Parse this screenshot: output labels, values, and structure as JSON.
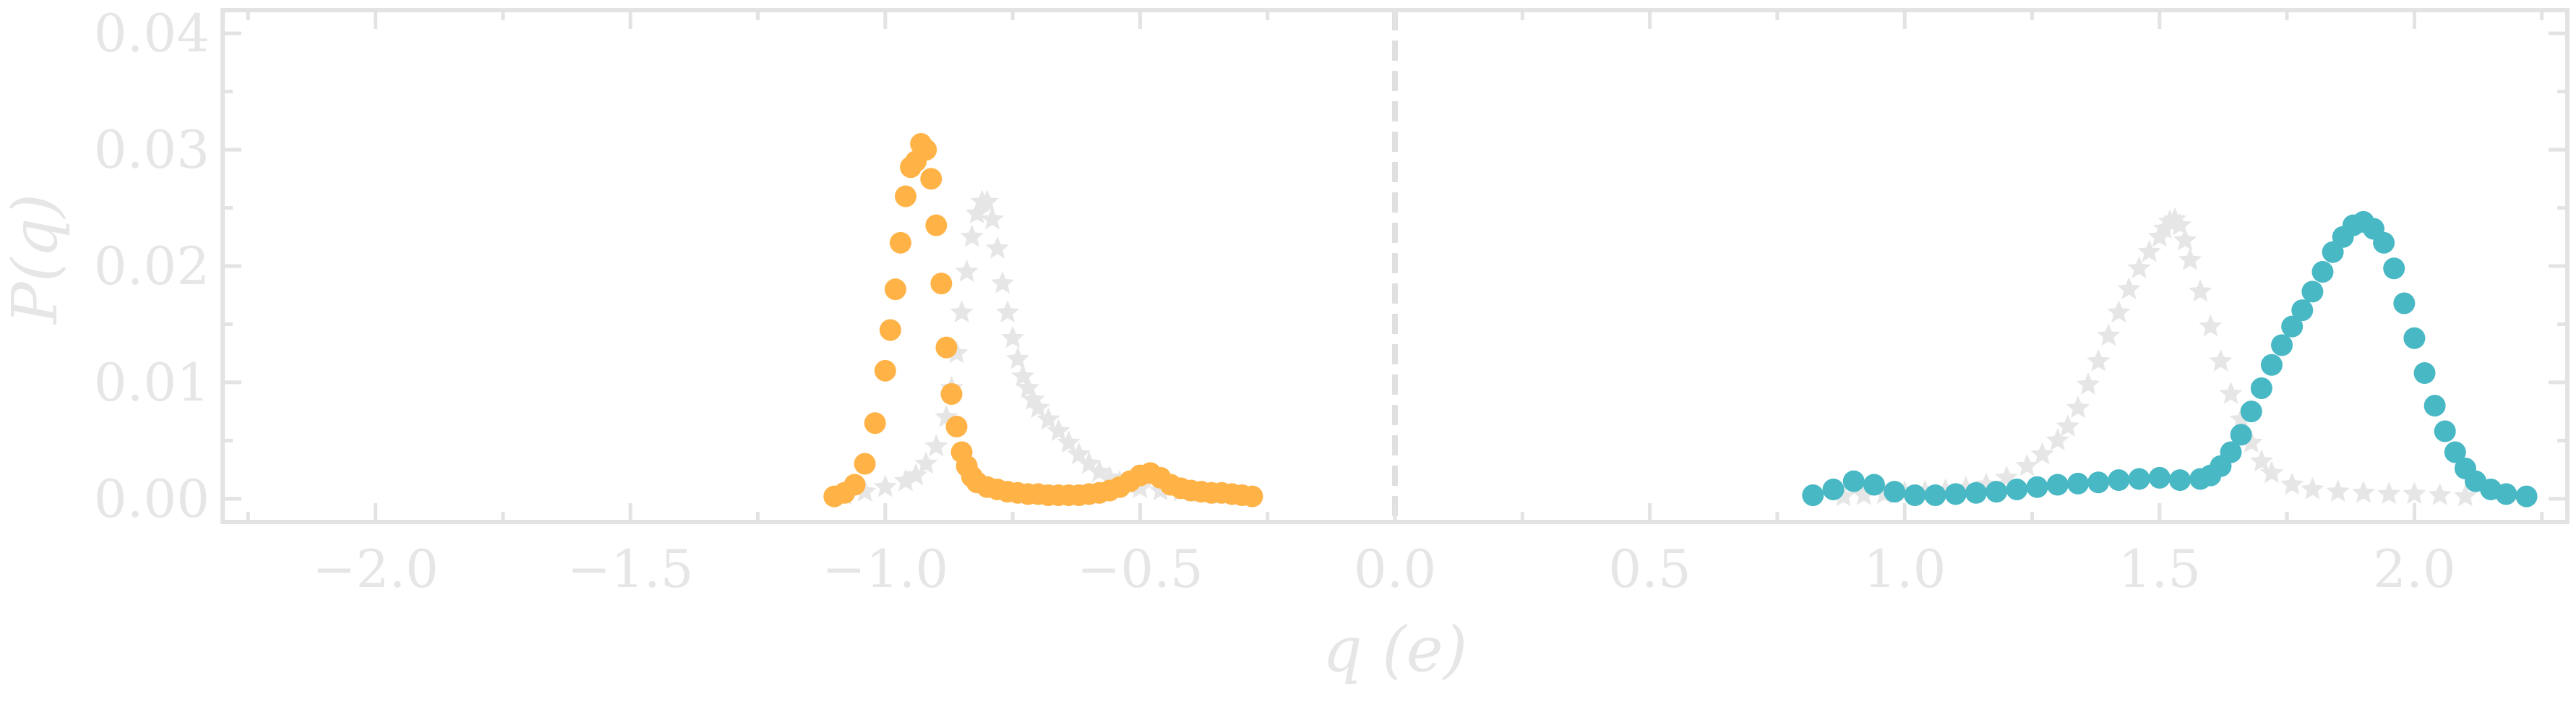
{
  "chart_data": {
    "type": "scatter",
    "title": "",
    "xlabel": "q (e)",
    "ylabel": "P(q)",
    "xlim": [
      -2.3,
      2.3
    ],
    "ylim": [
      -0.002,
      0.042
    ],
    "xticks": [
      -2.0,
      -1.5,
      -1.0,
      -0.5,
      0.0,
      0.5,
      1.0,
      1.5,
      2.0
    ],
    "xtick_labels": [
      "−2.0",
      "−1.5",
      "−1.0",
      "−0.5",
      "0.0",
      "0.5",
      "1.0",
      "1.5",
      "2.0"
    ],
    "yticks": [
      0.0,
      0.01,
      0.02,
      0.03,
      0.04
    ],
    "ytick_labels": [
      "0.00",
      "0.01",
      "0.02",
      "0.03",
      "0.04"
    ],
    "grid": false,
    "reference_line": {
      "x": 0.0,
      "style": "dashed"
    },
    "series": [
      {
        "marker": "circle",
        "color": "#FFB347",
        "x": [
          -1.1,
          -1.08,
          -1.06,
          -1.04,
          -1.02,
          -1.0,
          -0.99,
          -0.98,
          -0.97,
          -0.96,
          -0.95,
          -0.94,
          -0.93,
          -0.92,
          -0.91,
          -0.9,
          -0.89,
          -0.88,
          -0.87,
          -0.86,
          -0.85,
          -0.84,
          -0.83,
          -0.82,
          -0.8,
          -0.78,
          -0.76,
          -0.74,
          -0.72,
          -0.7,
          -0.68,
          -0.66,
          -0.64,
          -0.62,
          -0.6,
          -0.58,
          -0.56,
          -0.54,
          -0.52,
          -0.5,
          -0.48,
          -0.46,
          -0.44,
          -0.42,
          -0.4,
          -0.38,
          -0.36,
          -0.34,
          -0.32,
          -0.3,
          -0.28
        ],
        "y": [
          0.0002,
          0.0005,
          0.0012,
          0.003,
          0.0065,
          0.011,
          0.0145,
          0.018,
          0.022,
          0.026,
          0.0285,
          0.029,
          0.0305,
          0.03,
          0.0275,
          0.0235,
          0.0185,
          0.013,
          0.009,
          0.0062,
          0.004,
          0.0028,
          0.0019,
          0.0014,
          0.001,
          0.0008,
          0.0006,
          0.0005,
          0.0004,
          0.0004,
          0.0003,
          0.0003,
          0.0003,
          0.0003,
          0.0004,
          0.0005,
          0.0007,
          0.001,
          0.0015,
          0.002,
          0.0022,
          0.0018,
          0.0012,
          0.0009,
          0.0007,
          0.0006,
          0.0005,
          0.0005,
          0.0004,
          0.0003,
          0.0002
        ]
      },
      {
        "marker": "star",
        "color": "#E6E6E6",
        "x": [
          -1.08,
          -1.04,
          -1.0,
          -0.96,
          -0.94,
          -0.92,
          -0.9,
          -0.88,
          -0.87,
          -0.86,
          -0.85,
          -0.84,
          -0.83,
          -0.82,
          -0.81,
          -0.8,
          -0.79,
          -0.78,
          -0.77,
          -0.76,
          -0.75,
          -0.74,
          -0.73,
          -0.72,
          -0.71,
          -0.7,
          -0.68,
          -0.66,
          -0.64,
          -0.62,
          -0.6,
          -0.58,
          -0.56,
          -0.54,
          -0.52,
          -0.5,
          -0.46,
          -0.42,
          -0.38,
          -0.34,
          -0.3
        ],
        "y": [
          0.0003,
          0.0006,
          0.001,
          0.0015,
          0.002,
          0.003,
          0.0045,
          0.007,
          0.0095,
          0.0125,
          0.016,
          0.0195,
          0.0225,
          0.0245,
          0.0255,
          0.0255,
          0.024,
          0.0215,
          0.0185,
          0.016,
          0.0138,
          0.012,
          0.0105,
          0.0095,
          0.0085,
          0.0078,
          0.0068,
          0.0058,
          0.0048,
          0.0038,
          0.003,
          0.0023,
          0.0018,
          0.0014,
          0.0011,
          0.0009,
          0.0007,
          0.0006,
          0.0005,
          0.0004,
          0.0003
        ]
      },
      {
        "marker": "star",
        "color": "#E6E6E6",
        "x": [
          0.88,
          0.92,
          0.96,
          1.0,
          1.04,
          1.08,
          1.12,
          1.16,
          1.2,
          1.24,
          1.27,
          1.3,
          1.32,
          1.34,
          1.36,
          1.38,
          1.4,
          1.42,
          1.44,
          1.46,
          1.48,
          1.5,
          1.51,
          1.52,
          1.53,
          1.54,
          1.55,
          1.56,
          1.58,
          1.6,
          1.62,
          1.64,
          1.66,
          1.68,
          1.7,
          1.72,
          1.76,
          1.8,
          1.85,
          1.9,
          1.95,
          2.0,
          2.05,
          2.1
        ],
        "y": [
          0.0002,
          0.0003,
          0.0004,
          0.0005,
          0.0006,
          0.0007,
          0.0009,
          0.0012,
          0.0018,
          0.0028,
          0.0038,
          0.005,
          0.0062,
          0.0078,
          0.0098,
          0.0118,
          0.014,
          0.016,
          0.018,
          0.0198,
          0.0212,
          0.0225,
          0.0232,
          0.0238,
          0.024,
          0.0235,
          0.0222,
          0.0205,
          0.0178,
          0.0148,
          0.0118,
          0.009,
          0.0068,
          0.0048,
          0.0032,
          0.0022,
          0.0012,
          0.0008,
          0.0006,
          0.0005,
          0.0004,
          0.0004,
          0.0003,
          0.0002
        ]
      },
      {
        "marker": "circle",
        "color": "#48B8C4",
        "x": [
          0.82,
          0.86,
          0.9,
          0.94,
          0.98,
          1.02,
          1.06,
          1.1,
          1.14,
          1.18,
          1.22,
          1.26,
          1.3,
          1.34,
          1.38,
          1.42,
          1.46,
          1.5,
          1.54,
          1.58,
          1.6,
          1.62,
          1.64,
          1.66,
          1.68,
          1.7,
          1.72,
          1.74,
          1.76,
          1.78,
          1.8,
          1.82,
          1.84,
          1.86,
          1.88,
          1.9,
          1.92,
          1.94,
          1.96,
          1.98,
          2.0,
          2.02,
          2.04,
          2.06,
          2.08,
          2.1,
          2.12,
          2.15,
          2.18,
          2.22
        ],
        "y": [
          0.0003,
          0.0008,
          0.0015,
          0.0012,
          0.0006,
          0.0003,
          0.0003,
          0.0004,
          0.0005,
          0.0006,
          0.0008,
          0.001,
          0.0012,
          0.0013,
          0.0014,
          0.0016,
          0.0017,
          0.0018,
          0.0016,
          0.0017,
          0.002,
          0.0028,
          0.004,
          0.0055,
          0.0075,
          0.0095,
          0.0115,
          0.0132,
          0.0148,
          0.0162,
          0.0178,
          0.0195,
          0.0212,
          0.0225,
          0.0235,
          0.0238,
          0.0232,
          0.022,
          0.0198,
          0.0168,
          0.0138,
          0.0108,
          0.008,
          0.0058,
          0.004,
          0.0026,
          0.0015,
          0.0008,
          0.0004,
          0.0002
        ]
      }
    ]
  }
}
